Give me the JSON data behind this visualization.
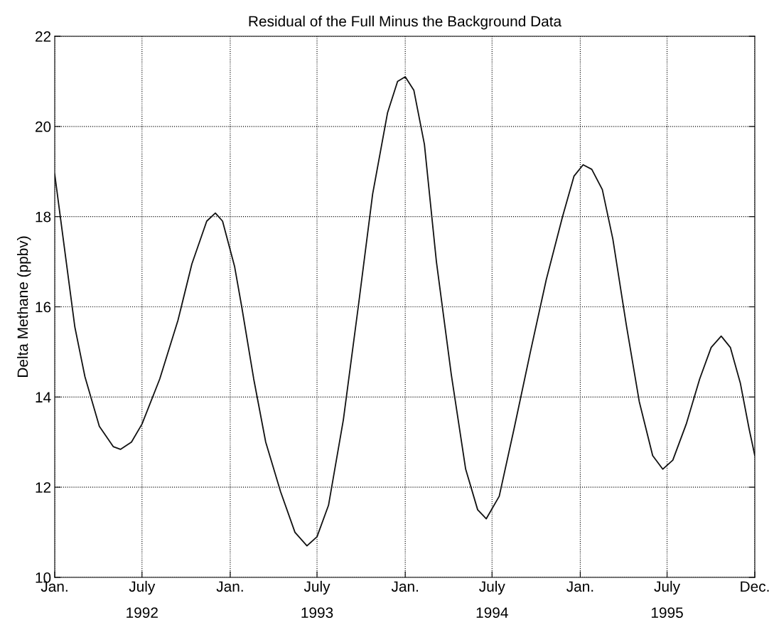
{
  "chart_data": {
    "type": "line",
    "title": "Residual of the Full Minus the Background Data",
    "ylabel": "Delta Methane (ppbv)",
    "xlim": [
      "1992-01-01",
      "1995-12-31"
    ],
    "xticks": [
      {
        "value": "1992-01-01",
        "label": "Jan."
      },
      {
        "value": "1992-07-01",
        "label": "July"
      },
      {
        "value": "1993-01-01",
        "label": "Jan."
      },
      {
        "value": "1993-07-01",
        "label": "July"
      },
      {
        "value": "1994-01-01",
        "label": "Jan."
      },
      {
        "value": "1994-07-01",
        "label": "July"
      },
      {
        "value": "1995-01-01",
        "label": "Jan."
      },
      {
        "value": "1995-07-01",
        "label": "July"
      },
      {
        "value": "1995-12-31",
        "label": "Dec."
      }
    ],
    "x2lim": [
      "1992-01-01",
      "1995-12-31"
    ],
    "x2ticks": [
      {
        "value": "1992-07-01",
        "label": "1992"
      },
      {
        "value": "1993-07-01",
        "label": "1993"
      },
      {
        "value": "1994-07-01",
        "label": "1994"
      },
      {
        "value": "1995-07-01",
        "label": "1995"
      }
    ],
    "ylim": [
      10,
      22
    ],
    "yticks": [
      10,
      12,
      14,
      16,
      18,
      20,
      22
    ],
    "grid": true,
    "line_style": "solid",
    "marker": "none",
    "series": [
      {
        "color": "#111111",
        "x": [
          "1992-01-01",
          "1992-01-25",
          "1992-02-12",
          "1992-03-04",
          "1992-04-03",
          "1992-05-02",
          "1992-05-17",
          "1992-06-09",
          "1992-07-01",
          "1992-08-07",
          "1992-09-14",
          "1992-10-13",
          "1992-11-13",
          "1992-12-01",
          "1992-12-16",
          "1993-01-10",
          "1993-01-25",
          "1993-02-19",
          "1993-03-16",
          "1993-04-16",
          "1993-05-16",
          "1993-06-10",
          "1993-07-01",
          "1993-07-25",
          "1993-08-25",
          "1993-09-25",
          "1993-10-25",
          "1993-11-25",
          "1993-12-16",
          "1994-01-01",
          "1994-01-19",
          "1994-02-10",
          "1994-03-07",
          "1994-04-07",
          "1994-05-07",
          "1994-06-01",
          "1994-06-19",
          "1994-07-16",
          "1994-08-16",
          "1994-09-19",
          "1994-10-22",
          "1994-11-25",
          "1994-12-19",
          "1995-01-07",
          "1995-01-25",
          "1995-02-16",
          "1995-03-10",
          "1995-04-07",
          "1995-05-04",
          "1995-06-01",
          "1995-06-22",
          "1995-07-13",
          "1995-08-10",
          "1995-09-07",
          "1995-10-01",
          "1995-10-22",
          "1995-11-10",
          "1995-12-01",
          "1995-12-19",
          "1995-12-31"
        ],
        "values": [
          18.94,
          17.0,
          15.55,
          14.45,
          13.35,
          12.9,
          12.84,
          13.0,
          13.4,
          14.4,
          15.7,
          16.95,
          17.9,
          18.08,
          17.9,
          16.9,
          16.0,
          14.4,
          13.0,
          11.9,
          11.0,
          10.7,
          10.9,
          11.6,
          13.5,
          16.0,
          18.5,
          20.3,
          21.0,
          21.1,
          20.8,
          19.6,
          17.0,
          14.5,
          12.4,
          11.5,
          11.3,
          11.8,
          13.3,
          15.0,
          16.6,
          18.0,
          18.9,
          19.15,
          19.05,
          18.6,
          17.5,
          15.6,
          13.9,
          12.7,
          12.4,
          12.6,
          13.4,
          14.4,
          15.1,
          15.35,
          15.1,
          14.3,
          13.3,
          12.7
        ]
      }
    ]
  }
}
